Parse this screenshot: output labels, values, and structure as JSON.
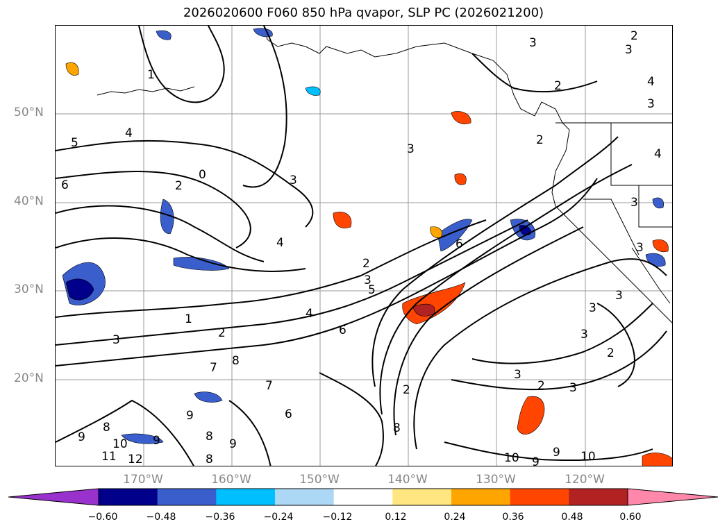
{
  "title": "2026020600 F060 850 hPa qvapor, SLP PC (2026021200)",
  "lat_labels": [
    "50°N",
    "40°N",
    "30°N",
    "20°N"
  ],
  "lon_labels": [
    "170°W",
    "160°W",
    "150°W",
    "140°W",
    "130°W",
    "120°W"
  ],
  "colorbar": {
    "ticks": [
      "−0.60",
      "−0.48",
      "−0.36",
      "−0.24",
      "−0.12",
      "0.12",
      "0.24",
      "0.36",
      "0.48",
      "0.60"
    ],
    "colors": [
      "#9932CC",
      "#00008B",
      "#3A5FCD",
      "#00BFFF",
      "#ADD8F5",
      "#FFFFFF",
      "#FFE680",
      "#FFA500",
      "#FF4500",
      "#B22222",
      "#FF88AA"
    ]
  },
  "contour_labels": [
    {
      "text": "1"
    },
    {
      "text": "4"
    },
    {
      "text": "5"
    },
    {
      "text": "6"
    },
    {
      "text": "2"
    },
    {
      "text": "0"
    },
    {
      "text": "3"
    },
    {
      "text": "4"
    },
    {
      "text": "2"
    },
    {
      "text": "3"
    },
    {
      "text": "5"
    },
    {
      "text": "6"
    },
    {
      "text": "1"
    },
    {
      "text": "2"
    },
    {
      "text": "3"
    },
    {
      "text": "4"
    },
    {
      "text": "6"
    },
    {
      "text": "7"
    },
    {
      "text": "7"
    },
    {
      "text": "8"
    },
    {
      "text": "9"
    },
    {
      "text": "6"
    },
    {
      "text": "8"
    },
    {
      "text": "9"
    },
    {
      "text": "11"
    },
    {
      "text": "12"
    },
    {
      "text": "10"
    },
    {
      "text": "9"
    },
    {
      "text": "8"
    },
    {
      "text": "9"
    },
    {
      "text": "8"
    },
    {
      "text": "2"
    },
    {
      "text": "3"
    },
    {
      "text": "2"
    },
    {
      "text": "3"
    },
    {
      "text": "2"
    },
    {
      "text": "3"
    },
    {
      "text": "3"
    },
    {
      "text": "10"
    },
    {
      "text": "9"
    },
    {
      "text": "9"
    },
    {
      "text": "10"
    },
    {
      "text": "8"
    },
    {
      "text": "3"
    },
    {
      "text": "2"
    },
    {
      "text": "3"
    },
    {
      "text": "2"
    },
    {
      "text": "2"
    },
    {
      "text": "3"
    },
    {
      "text": "4"
    },
    {
      "text": "3"
    },
    {
      "text": "4"
    },
    {
      "text": "3"
    },
    {
      "text": "3"
    },
    {
      "text": "3"
    }
  ]
}
